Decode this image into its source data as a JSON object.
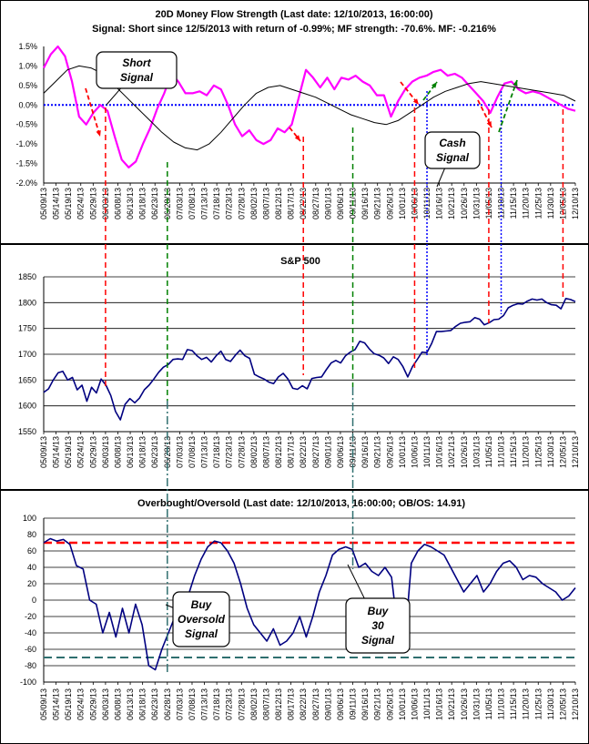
{
  "chart_data": [
    {
      "type": "line",
      "title": "20D Money Flow Strength (Last date: 12/10/2013, 16:00:00)",
      "subtitle": "Signal: Short since  12/5/2013 with return of -0.99%; MF strength: -70.6%. MF: -0.216%",
      "x_labels": [
        "05/09/13",
        "05/14/13",
        "05/19/13",
        "05/24/13",
        "05/29/13",
        "06/03/13",
        "06/08/13",
        "06/13/13",
        "06/18/13",
        "06/23/13",
        "06/28/13",
        "07/03/13",
        "07/08/13",
        "07/13/13",
        "07/18/13",
        "07/23/13",
        "07/28/13",
        "08/02/13",
        "08/07/13",
        "08/12/13",
        "08/17/13",
        "08/22/13",
        "08/27/13",
        "09/01/13",
        "09/06/13",
        "09/11/13",
        "09/16/13",
        "09/21/13",
        "09/26/13",
        "10/01/13",
        "10/06/13",
        "10/11/13",
        "10/16/13",
        "10/21/13",
        "10/26/13",
        "10/31/13",
        "11/05/13",
        "11/10/13",
        "11/15/13",
        "11/20/13",
        "11/25/13",
        "11/30/13",
        "12/05/13",
        "12/10/13"
      ],
      "y_ticks": [
        "1.5%",
        "1.0%",
        "0.5%",
        "0.0%",
        "-0.5%",
        "-1.0%",
        "-1.5%",
        "-2.0%"
      ],
      "ylim": [
        -2.0,
        1.5
      ],
      "series": [
        {
          "color": "#ff00ff",
          "values": [
            0.95,
            1.3,
            1.5,
            1.25,
            0.6,
            -0.3,
            -0.5,
            -0.2,
            0.0,
            -0.15,
            -0.8,
            -1.4,
            -1.6,
            -1.45,
            -1.0,
            -0.6,
            -0.1,
            0.3,
            0.8,
            0.6,
            0.3,
            0.3,
            0.35,
            0.25,
            0.5,
            0.4,
            0.0,
            -0.5,
            -0.8,
            -0.65,
            -0.9,
            -1.0,
            -0.9,
            -0.6,
            -0.7,
            -0.5,
            0.2,
            0.9,
            0.7,
            0.45,
            0.7,
            0.4,
            0.7,
            0.65,
            0.75,
            0.6,
            0.5,
            0.25,
            0.25,
            -0.3,
            0.1,
            0.4,
            0.6,
            0.7,
            0.75,
            0.85,
            0.9,
            0.75,
            0.8,
            0.7,
            0.5,
            0.3,
            0.1,
            -0.2,
            0.2,
            0.55,
            0.6,
            0.4,
            0.3,
            0.35,
            0.3,
            0.2,
            0.1,
            0.0,
            -0.1,
            -0.15
          ]
        },
        {
          "color": "#000000",
          "values": [
            0.3,
            0.6,
            0.9,
            1.0,
            0.95,
            0.8,
            0.5,
            0.2,
            -0.1,
            -0.4,
            -0.7,
            -0.95,
            -1.1,
            -1.15,
            -1.0,
            -0.7,
            -0.35,
            0.0,
            0.3,
            0.45,
            0.5,
            0.4,
            0.3,
            0.2,
            0.05,
            -0.1,
            -0.25,
            -0.35,
            -0.45,
            -0.5,
            -0.4,
            -0.2,
            0.0,
            0.2,
            0.35,
            0.45,
            0.55,
            0.6,
            0.55,
            0.5,
            0.45,
            0.4,
            0.35,
            0.3,
            0.25,
            0.1
          ]
        }
      ],
      "zero_line_color": "#0000ff"
    },
    {
      "type": "line",
      "title": "S&P 500",
      "x_labels": [
        "05/09/13",
        "05/14/13",
        "05/19/13",
        "05/24/13",
        "05/29/13",
        "06/03/13",
        "06/08/13",
        "06/13/13",
        "06/18/13",
        "06/23/13",
        "06/28/13",
        "07/03/13",
        "07/08/13",
        "07/13/13",
        "07/18/13",
        "07/23/13",
        "07/28/13",
        "08/02/13",
        "08/07/13",
        "08/12/13",
        "08/17/13",
        "08/22/13",
        "08/27/13",
        "09/01/13",
        "09/06/13",
        "09/11/13",
        "09/16/13",
        "09/21/13",
        "09/26/13",
        "10/01/13",
        "10/06/13",
        "10/11/13",
        "10/16/13",
        "10/21/13",
        "10/26/13",
        "10/31/13",
        "11/05/13",
        "11/10/13",
        "11/15/13",
        "11/20/13",
        "11/25/13",
        "11/30/13",
        "12/05/13",
        "12/10/13"
      ],
      "y_ticks": [
        "1850",
        "1800",
        "1750",
        "1700",
        "1650",
        "1600",
        "1550"
      ],
      "ylim": [
        1550,
        1850
      ],
      "series": [
        {
          "color": "#000080",
          "values": [
            1626,
            1633,
            1650,
            1664,
            1667,
            1650,
            1655,
            1631,
            1640,
            1609,
            1636,
            1625,
            1652,
            1640,
            1620,
            1589,
            1573,
            1603,
            1614,
            1606,
            1615,
            1631,
            1640,
            1652,
            1665,
            1675,
            1680,
            1690,
            1691,
            1690,
            1709,
            1707,
            1697,
            1690,
            1694,
            1685,
            1697,
            1706,
            1690,
            1686,
            1698,
            1708,
            1697,
            1692,
            1661,
            1656,
            1652,
            1646,
            1643,
            1656,
            1663,
            1652,
            1634,
            1632,
            1639,
            1633,
            1653,
            1655,
            1656,
            1670,
            1683,
            1688,
            1683,
            1697,
            1704,
            1709,
            1725,
            1722,
            1710,
            1701,
            1698,
            1693,
            1682,
            1695,
            1690,
            1676,
            1656,
            1676,
            1690,
            1704,
            1703,
            1721,
            1744,
            1744,
            1745,
            1746,
            1754,
            1760,
            1762,
            1763,
            1771,
            1768,
            1757,
            1761,
            1767,
            1768,
            1775,
            1790,
            1795,
            1798,
            1797,
            1803,
            1807,
            1805,
            1807,
            1800,
            1796,
            1795,
            1788,
            1808,
            1806,
            1802
          ]
        }
      ]
    },
    {
      "type": "line",
      "title": "Overbought/Oversold (Last date: 12/10/2013, 16:00:00; OB/OS: 14.91)",
      "x_labels": [
        "05/09/13",
        "05/14/13",
        "05/19/13",
        "05/24/13",
        "05/29/13",
        "06/03/13",
        "06/08/13",
        "06/13/13",
        "06/18/13",
        "06/23/13",
        "06/28/13",
        "07/03/13",
        "07/08/13",
        "07/13/13",
        "07/18/13",
        "07/23/13",
        "07/28/13",
        "08/02/13",
        "08/07/13",
        "08/12/13",
        "08/17/13",
        "08/22/13",
        "08/27/13",
        "09/01/13",
        "09/06/13",
        "09/11/13",
        "09/16/13",
        "09/21/13",
        "09/26/13",
        "10/01/13",
        "10/06/13",
        "10/11/13",
        "10/16/13",
        "10/21/13",
        "10/26/13",
        "10/31/13",
        "11/05/13",
        "11/10/13",
        "11/15/13",
        "11/20/13",
        "11/25/13",
        "11/30/13",
        "12/05/13",
        "12/10/13"
      ],
      "y_ticks": [
        "100",
        "80",
        "60",
        "40",
        "20",
        "0",
        "-20",
        "-40",
        "-60",
        "-80",
        "-100"
      ],
      "ylim": [
        -100,
        100
      ],
      "series": [
        {
          "color": "#000080",
          "values": [
            70,
            75,
            72,
            74,
            68,
            42,
            38,
            0,
            -5,
            -40,
            -15,
            -45,
            -10,
            -40,
            -5,
            -30,
            -80,
            -85,
            -60,
            -40,
            -20,
            -5,
            5,
            30,
            50,
            65,
            72,
            70,
            60,
            45,
            20,
            -10,
            -30,
            -40,
            -50,
            -35,
            -55,
            -50,
            -40,
            -20,
            -45,
            -20,
            10,
            30,
            55,
            62,
            65,
            62,
            40,
            45,
            35,
            30,
            40,
            28,
            -40,
            -55,
            45,
            60,
            68,
            65,
            60,
            55,
            40,
            25,
            10,
            20,
            30,
            10,
            20,
            35,
            45,
            48,
            40,
            25,
            30,
            28,
            20,
            15,
            10,
            0,
            5,
            15
          ]
        }
      ],
      "ob_line": 70,
      "os_line": -70
    }
  ],
  "annotations": {
    "short_signal": "Short Signal",
    "cash_signal": "Cash Signal",
    "buy_oversold_signal": "Buy Oversold Signal",
    "buy_30_signal": "Buy 30 Signal"
  }
}
